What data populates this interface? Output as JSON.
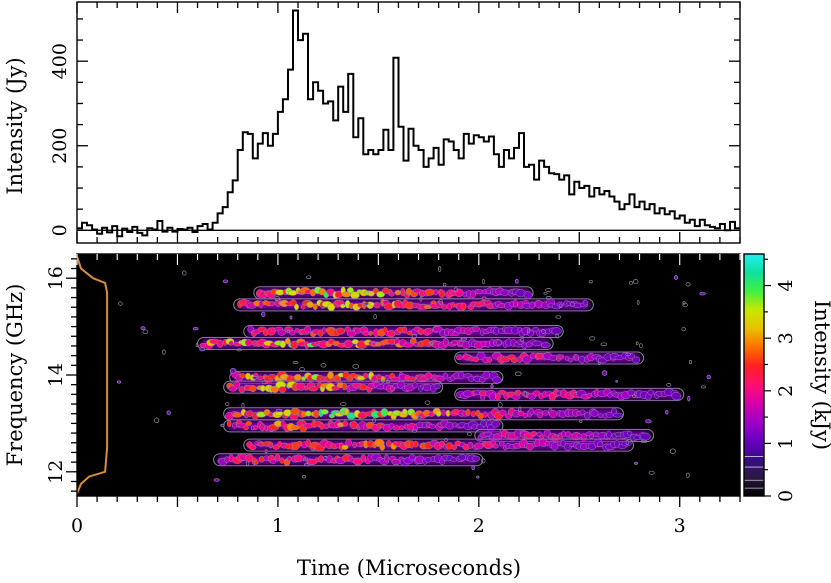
{
  "chart_data": [
    {
      "type": "line",
      "panel": "top",
      "style": "step",
      "ylabel": "Intensity (Jy)",
      "xlim": [
        0,
        3.3
      ],
      "ylim": [
        -30,
        540
      ],
      "yticks": [
        0,
        200,
        400
      ],
      "xticks": [
        0,
        0.5,
        1,
        1.5,
        2,
        2.5,
        3
      ],
      "baseline": 0,
      "line_color": "#000000",
      "bin_width": 0.025,
      "x": [
        0.0,
        0.025,
        0.05,
        0.075,
        0.1,
        0.125,
        0.15,
        0.175,
        0.2,
        0.225,
        0.25,
        0.275,
        0.3,
        0.325,
        0.35,
        0.375,
        0.4,
        0.425,
        0.45,
        0.475,
        0.5,
        0.525,
        0.55,
        0.575,
        0.6,
        0.625,
        0.65,
        0.675,
        0.7,
        0.725,
        0.75,
        0.775,
        0.8,
        0.825,
        0.85,
        0.875,
        0.9,
        0.925,
        0.95,
        0.975,
        1.0,
        1.025,
        1.05,
        1.075,
        1.1,
        1.125,
        1.15,
        1.175,
        1.2,
        1.225,
        1.25,
        1.275,
        1.3,
        1.325,
        1.35,
        1.375,
        1.4,
        1.425,
        1.45,
        1.475,
        1.5,
        1.525,
        1.55,
        1.575,
        1.6,
        1.625,
        1.65,
        1.675,
        1.7,
        1.725,
        1.75,
        1.775,
        1.8,
        1.825,
        1.85,
        1.875,
        1.9,
        1.925,
        1.95,
        1.975,
        2.0,
        2.025,
        2.05,
        2.075,
        2.1,
        2.125,
        2.15,
        2.175,
        2.2,
        2.225,
        2.25,
        2.275,
        2.3,
        2.325,
        2.35,
        2.375,
        2.4,
        2.425,
        2.45,
        2.475,
        2.5,
        2.525,
        2.55,
        2.575,
        2.6,
        2.625,
        2.65,
        2.675,
        2.7,
        2.725,
        2.75,
        2.775,
        2.8,
        2.825,
        2.85,
        2.875,
        2.9,
        2.925,
        2.95,
        2.975,
        3.0,
        3.025,
        3.05,
        3.075,
        3.1,
        3.125,
        3.15,
        3.175,
        3.2,
        3.225,
        3.25,
        3.275
      ],
      "y": [
        5,
        18,
        12,
        2,
        -8,
        6,
        -5,
        10,
        -14,
        4,
        -4,
        8,
        -6,
        -12,
        5,
        2,
        22,
        -3,
        6,
        -3,
        3,
        2,
        6,
        -4,
        10,
        15,
        2,
        18,
        40,
        55,
        90,
        118,
        190,
        232,
        228,
        170,
        205,
        230,
        200,
        228,
        280,
        310,
        380,
        520,
        450,
        465,
        310,
        350,
        330,
        300,
        305,
        260,
        340,
        280,
        370,
        220,
        265,
        180,
        190,
        180,
        190,
        238,
        190,
        408,
        245,
        165,
        240,
        200,
        190,
        150,
        170,
        195,
        155,
        215,
        210,
        190,
        170,
        228,
        205,
        225,
        220,
        210,
        222,
        180,
        150,
        190,
        170,
        195,
        230,
        150,
        155,
        120,
        165,
        150,
        135,
        133,
        120,
        130,
        85,
        115,
        100,
        105,
        80,
        100,
        85,
        93,
        80,
        68,
        50,
        62,
        85,
        55,
        68,
        50,
        62,
        40,
        52,
        38,
        45,
        28,
        35,
        18,
        25,
        10,
        25,
        12,
        8,
        5,
        15,
        0,
        20,
        5
      ]
    },
    {
      "type": "heatmap",
      "panel": "bottom",
      "xlabel": "Time (Microseconds)",
      "ylabel": "Frequency (GHz)",
      "xlim": [
        0,
        3.3
      ],
      "ylim": [
        11.5,
        16.5
      ],
      "xticks": [
        0,
        1,
        2,
        3
      ],
      "yticks": [
        12,
        14,
        16
      ],
      "background": "#000000",
      "contours": true,
      "contour_color": "#8a8aa0",
      "bands": [
        {
          "freq": 15.7,
          "t_start": 0.9,
          "t_end": 2.25,
          "peak": 3.6
        },
        {
          "freq": 15.45,
          "t_start": 0.8,
          "t_end": 2.55,
          "peak": 3.2
        },
        {
          "freq": 14.9,
          "t_start": 0.85,
          "t_end": 2.4,
          "peak": 2.2
        },
        {
          "freq": 14.65,
          "t_start": 0.62,
          "t_end": 2.35,
          "peak": 3.6
        },
        {
          "freq": 14.35,
          "t_start": 1.9,
          "t_end": 2.8,
          "peak": 1.6
        },
        {
          "freq": 13.95,
          "t_start": 0.78,
          "t_end": 2.1,
          "peak": 3.6
        },
        {
          "freq": 13.75,
          "t_start": 0.75,
          "t_end": 1.8,
          "peak": 3.4
        },
        {
          "freq": 13.6,
          "t_start": 1.9,
          "t_end": 3.0,
          "peak": 1.6
        },
        {
          "freq": 13.2,
          "t_start": 0.75,
          "t_end": 2.7,
          "peak": 3.8
        },
        {
          "freq": 12.95,
          "t_start": 0.75,
          "t_end": 2.1,
          "peak": 2.6
        },
        {
          "freq": 12.75,
          "t_start": 2.0,
          "t_end": 2.85,
          "peak": 1.4
        },
        {
          "freq": 12.55,
          "t_start": 0.85,
          "t_end": 2.75,
          "peak": 2.5
        },
        {
          "freq": 12.25,
          "t_start": 0.7,
          "t_end": 2.0,
          "peak": 2.0
        }
      ],
      "bandpass_trace": {
        "color": "#d98c3a",
        "freq": [
          11.55,
          11.75,
          11.9,
          12.0,
          12.5,
          13.0,
          14.0,
          15.0,
          15.7,
          15.9,
          16.0,
          16.2,
          16.45
        ],
        "time": [
          0.0,
          0.02,
          0.06,
          0.14,
          0.15,
          0.15,
          0.15,
          0.15,
          0.15,
          0.14,
          0.08,
          0.02,
          0.0
        ]
      }
    },
    {
      "type": "colorbar",
      "label": "Intensity (kJy)",
      "range": [
        0,
        4.6
      ],
      "ticks": [
        0,
        1,
        2,
        3,
        4
      ],
      "colormap": [
        "#000000",
        "#2a1a40",
        "#3a0a8a",
        "#6a00c0",
        "#a000c8",
        "#d800a8",
        "#ff1070",
        "#ff2020",
        "#ff7000",
        "#e8c000",
        "#c8e800",
        "#40f040",
        "#10e0a0",
        "#20f0f0"
      ]
    }
  ],
  "axes": {
    "top": {
      "ylabel": "Intensity (Jy)",
      "ytick_labels": [
        "0",
        "200",
        "400"
      ]
    },
    "bottom": {
      "xlabel": "Time (Microseconds)",
      "ylabel": "Frequency (GHz)",
      "xtick_labels": [
        "0",
        "1",
        "2",
        "3"
      ],
      "ytick_labels": [
        "12",
        "14",
        "16"
      ]
    },
    "colorbar": {
      "label": "Intensity (kJy)",
      "tick_labels": [
        "0",
        "1",
        "2",
        "3",
        "4"
      ]
    }
  }
}
